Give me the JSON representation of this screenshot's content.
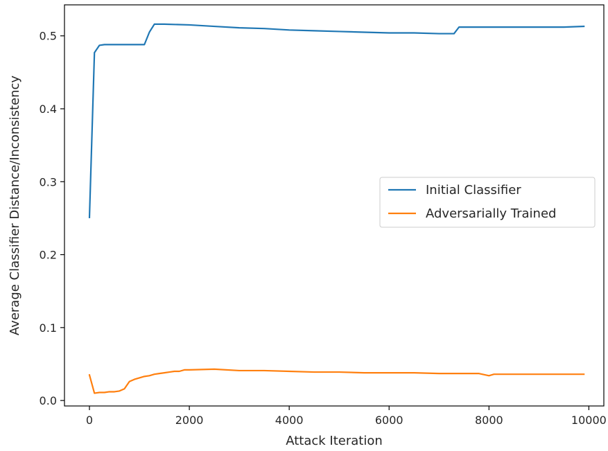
{
  "chart_data": {
    "type": "line",
    "title": "",
    "xlabel": "Attack Iteration",
    "ylabel": "Average Classifier Distance/Inconsistency",
    "xlim": [
      -500,
      10300
    ],
    "ylim": [
      -0.0075,
      0.5425
    ],
    "xticks": [
      0,
      2000,
      4000,
      6000,
      8000,
      10000
    ],
    "xtick_labels": [
      "0",
      "2000",
      "4000",
      "6000",
      "8000",
      "10000"
    ],
    "yticks": [
      0.0,
      0.1,
      0.2,
      0.3,
      0.4,
      0.5
    ],
    "ytick_labels": [
      "0.0",
      "0.1",
      "0.2",
      "0.3",
      "0.4",
      "0.5"
    ],
    "grid": false,
    "legend_position": "center-right",
    "series": [
      {
        "name": "Initial Classifier",
        "color": "#1f77b4",
        "x": [
          0,
          100,
          200,
          300,
          400,
          500,
          600,
          700,
          800,
          900,
          1000,
          1100,
          1200,
          1300,
          1400,
          1500,
          2000,
          2500,
          3000,
          3500,
          4000,
          4500,
          5000,
          5500,
          6000,
          6500,
          7000,
          7300,
          7400,
          7500,
          8000,
          8500,
          9000,
          9500,
          9900
        ],
        "y": [
          0.251,
          0.477,
          0.487,
          0.488,
          0.488,
          0.488,
          0.488,
          0.488,
          0.488,
          0.488,
          0.488,
          0.488,
          0.505,
          0.516,
          0.516,
          0.516,
          0.515,
          0.513,
          0.511,
          0.51,
          0.508,
          0.507,
          0.506,
          0.505,
          0.504,
          0.504,
          0.503,
          0.503,
          0.512,
          0.512,
          0.512,
          0.512,
          0.512,
          0.512,
          0.513
        ]
      },
      {
        "name": "Adversarially Trained",
        "color": "#ff7f0e",
        "x": [
          0,
          100,
          200,
          300,
          400,
          500,
          600,
          700,
          800,
          900,
          1000,
          1100,
          1200,
          1300,
          1400,
          1500,
          1600,
          1700,
          1800,
          1900,
          2000,
          2500,
          3000,
          3500,
          4000,
          4500,
          5000,
          5500,
          6000,
          6500,
          7000,
          7500,
          7800,
          8000,
          8100,
          8500,
          9000,
          9500,
          9900
        ],
        "y": [
          0.035,
          0.01,
          0.011,
          0.011,
          0.012,
          0.012,
          0.013,
          0.016,
          0.026,
          0.029,
          0.031,
          0.033,
          0.034,
          0.036,
          0.037,
          0.038,
          0.039,
          0.04,
          0.04,
          0.042,
          0.042,
          0.043,
          0.041,
          0.041,
          0.04,
          0.039,
          0.039,
          0.038,
          0.038,
          0.038,
          0.037,
          0.037,
          0.037,
          0.034,
          0.036,
          0.036,
          0.036,
          0.036,
          0.036
        ]
      }
    ]
  }
}
